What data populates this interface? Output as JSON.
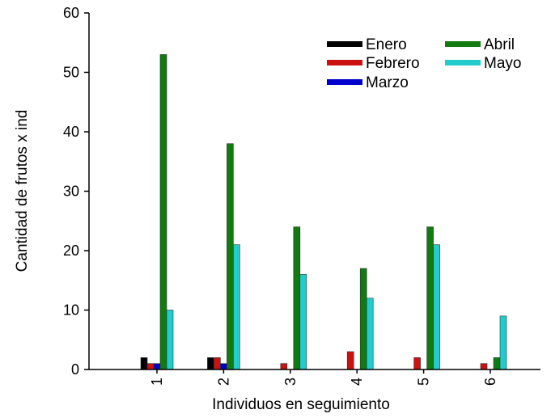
{
  "chart_data": {
    "type": "bar",
    "title": "",
    "xlabel": "Individuos en seguimiento",
    "ylabel": "Cantidad de frutos x ind",
    "categories": [
      "1",
      "2",
      "3",
      "4",
      "5",
      "6"
    ],
    "ylim": [
      0,
      60
    ],
    "yticks": [
      "0",
      "10",
      "20",
      "30",
      "40",
      "50",
      "60"
    ],
    "grid": false,
    "legend_position": "top-right",
    "series": [
      {
        "name": "Enero",
        "color": "#000000",
        "values": [
          2,
          2,
          0,
          0,
          0,
          0
        ]
      },
      {
        "name": "Febrero",
        "color": "#cc1111",
        "values": [
          1,
          2,
          1,
          3,
          2,
          1
        ]
      },
      {
        "name": "Marzo",
        "color": "#0000cc",
        "values": [
          1,
          1,
          0,
          0,
          0,
          0
        ]
      },
      {
        "name": "Abril",
        "color": "#117a11",
        "values": [
          53,
          38,
          24,
          17,
          24,
          2
        ]
      },
      {
        "name": "Mayo",
        "color": "#22cccc",
        "values": [
          10,
          21,
          16,
          12,
          21,
          9
        ]
      }
    ]
  }
}
